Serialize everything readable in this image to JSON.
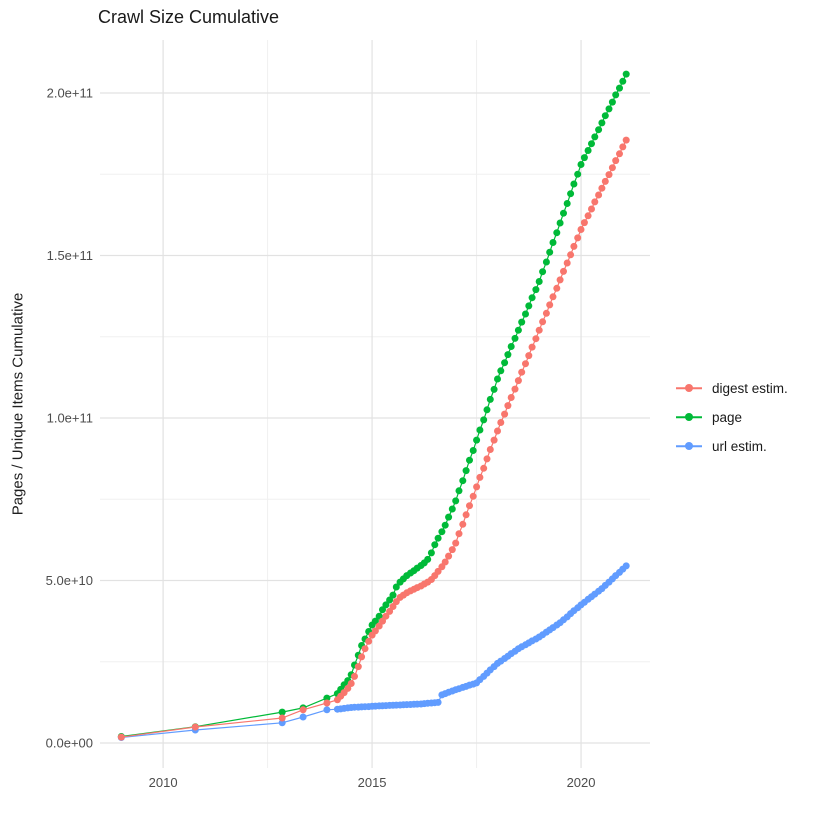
{
  "title": "Crawl Size Cumulative",
  "axes": {
    "y_title": "Pages / Unique Items Cumulative",
    "x_tick_labels": [
      "2010",
      "2015",
      "2020"
    ],
    "y_tick_labels": [
      "0.0e+00",
      "5.0e+10",
      "1.0e+11",
      "1.5e+11",
      "2.0e+11"
    ]
  },
  "legend": {
    "items": [
      {
        "label": "digest estim.",
        "color": "#F8766D"
      },
      {
        "label": "page",
        "color": "#00BA38"
      },
      {
        "label": "url estim.",
        "color": "#619CFF"
      }
    ]
  },
  "colors": {
    "grid_major": "#e2e2e2",
    "grid_minor": "#f0f0f0",
    "tick_text": "#4d4d4d",
    "background": "#ffffff"
  },
  "chart_data": {
    "type": "line",
    "title": "Crawl Size Cumulative",
    "xlabel": "",
    "ylabel": "Pages / Unique Items Cumulative",
    "value_unit": 1000000000,
    "xlim": [
      2008.49,
      2021.65
    ],
    "ylim": [
      -7.7,
      216.3
    ],
    "grid": true,
    "legend_position": "right",
    "x_ticks": [
      {
        "label": "2010",
        "value": 2010
      },
      {
        "label": "2015",
        "value": 2015
      },
      {
        "label": "2020",
        "value": 2020
      }
    ],
    "y_ticks": [
      {
        "label": "0.0e+00",
        "value": 0
      },
      {
        "label": "5.0e+10",
        "value": 50
      },
      {
        "label": "1.0e+11",
        "value": 100
      },
      {
        "label": "1.5e+11",
        "value": 150
      },
      {
        "label": "2.0e+11",
        "value": 200
      }
    ],
    "x_minor": [
      2012.5,
      2017.5
    ],
    "y_minor": [
      25,
      75,
      125,
      175
    ],
    "draw_order": [
      1,
      2,
      0
    ],
    "series": [
      {
        "name": "digest estim.",
        "color": "#F8766D",
        "points": [
          [
            2009.0,
            1.8
          ],
          [
            2010.77,
            4.9
          ],
          [
            2012.85,
            7.7
          ],
          [
            2013.35,
            10.2
          ],
          [
            2013.92,
            12.3
          ],
          [
            2014.17,
            13.3
          ],
          [
            2014.25,
            14.4
          ],
          [
            2014.33,
            15.5
          ],
          [
            2014.42,
            16.8
          ],
          [
            2014.5,
            18.3
          ],
          [
            2014.58,
            20.5
          ],
          [
            2014.67,
            23.5
          ],
          [
            2014.75,
            26.5
          ],
          [
            2014.83,
            29.0
          ],
          [
            2014.92,
            31.3
          ],
          [
            2015.0,
            33.2
          ],
          [
            2015.08,
            34.5
          ],
          [
            2015.17,
            36.0
          ],
          [
            2015.25,
            37.5
          ],
          [
            2015.33,
            39.0
          ],
          [
            2015.42,
            40.5
          ],
          [
            2015.5,
            42.0
          ],
          [
            2015.58,
            43.5
          ],
          [
            2015.67,
            44.8
          ],
          [
            2015.75,
            45.5
          ],
          [
            2015.83,
            46.2
          ],
          [
            2015.92,
            46.8
          ],
          [
            2016.0,
            47.3
          ],
          [
            2016.08,
            47.8
          ],
          [
            2016.17,
            48.3
          ],
          [
            2016.25,
            48.9
          ],
          [
            2016.33,
            49.5
          ],
          [
            2016.42,
            50.3
          ],
          [
            2016.5,
            51.5
          ],
          [
            2016.58,
            52.8
          ],
          [
            2016.67,
            54.2
          ],
          [
            2016.75,
            55.7
          ],
          [
            2016.83,
            57.5
          ],
          [
            2016.92,
            59.5
          ],
          [
            2017.0,
            61.5
          ],
          [
            2017.08,
            64.4
          ],
          [
            2017.17,
            67.3
          ],
          [
            2017.25,
            70.2
          ],
          [
            2017.33,
            73.0
          ],
          [
            2017.42,
            75.9
          ],
          [
            2017.5,
            78.8
          ],
          [
            2017.58,
            81.7
          ],
          [
            2017.67,
            84.5
          ],
          [
            2017.75,
            87.4
          ],
          [
            2017.83,
            90.3
          ],
          [
            2017.92,
            93.2
          ],
          [
            2018.0,
            96.0
          ],
          [
            2018.08,
            98.6
          ],
          [
            2018.17,
            101.2
          ],
          [
            2018.25,
            103.8
          ],
          [
            2018.33,
            106.3
          ],
          [
            2018.42,
            108.9
          ],
          [
            2018.5,
            111.5
          ],
          [
            2018.58,
            114.1
          ],
          [
            2018.67,
            116.7
          ],
          [
            2018.75,
            119.2
          ],
          [
            2018.83,
            121.8
          ],
          [
            2018.92,
            124.4
          ],
          [
            2019.0,
            127.0
          ],
          [
            2019.08,
            129.6
          ],
          [
            2019.17,
            132.2
          ],
          [
            2019.25,
            134.8
          ],
          [
            2019.33,
            137.3
          ],
          [
            2019.42,
            139.9
          ],
          [
            2019.5,
            142.5
          ],
          [
            2019.58,
            145.1
          ],
          [
            2019.67,
            147.7
          ],
          [
            2019.75,
            150.2
          ],
          [
            2019.83,
            152.8
          ],
          [
            2019.92,
            155.4
          ],
          [
            2020.0,
            158.0
          ],
          [
            2020.08,
            160.1
          ],
          [
            2020.17,
            162.2
          ],
          [
            2020.25,
            164.3
          ],
          [
            2020.33,
            166.5
          ],
          [
            2020.42,
            168.6
          ],
          [
            2020.5,
            170.7
          ],
          [
            2020.58,
            172.8
          ],
          [
            2020.67,
            174.9
          ],
          [
            2020.75,
            177.0
          ],
          [
            2020.83,
            179.2
          ],
          [
            2020.92,
            181.3
          ],
          [
            2021.0,
            183.4
          ],
          [
            2021.08,
            185.5
          ]
        ]
      },
      {
        "name": "page",
        "color": "#00BA38",
        "points": [
          [
            2009.0,
            2.0
          ],
          [
            2010.77,
            5.0
          ],
          [
            2012.85,
            9.5
          ],
          [
            2013.35,
            10.8
          ],
          [
            2013.92,
            13.8
          ],
          [
            2014.17,
            15.2
          ],
          [
            2014.25,
            16.5
          ],
          [
            2014.33,
            17.9
          ],
          [
            2014.42,
            19.2
          ],
          [
            2014.5,
            21.0
          ],
          [
            2014.58,
            24.0
          ],
          [
            2014.67,
            27.0
          ],
          [
            2014.75,
            30.0
          ],
          [
            2014.83,
            32.0
          ],
          [
            2014.92,
            34.3
          ],
          [
            2015.0,
            36.3
          ],
          [
            2015.08,
            37.5
          ],
          [
            2015.17,
            39.0
          ],
          [
            2015.25,
            41.0
          ],
          [
            2015.33,
            42.5
          ],
          [
            2015.42,
            44.0
          ],
          [
            2015.5,
            45.5
          ],
          [
            2015.58,
            48.0
          ],
          [
            2015.67,
            49.5
          ],
          [
            2015.75,
            50.5
          ],
          [
            2015.83,
            51.5
          ],
          [
            2015.92,
            52.3
          ],
          [
            2016.0,
            53.0
          ],
          [
            2016.08,
            53.8
          ],
          [
            2016.17,
            54.6
          ],
          [
            2016.25,
            55.4
          ],
          [
            2016.33,
            56.5
          ],
          [
            2016.42,
            58.5
          ],
          [
            2016.5,
            61.0
          ],
          [
            2016.58,
            63.0
          ],
          [
            2016.67,
            65.0
          ],
          [
            2016.75,
            67.0
          ],
          [
            2016.83,
            69.5
          ],
          [
            2016.92,
            72.0
          ],
          [
            2017.0,
            74.5
          ],
          [
            2017.08,
            77.6
          ],
          [
            2017.17,
            80.7
          ],
          [
            2017.25,
            83.8
          ],
          [
            2017.33,
            87.0
          ],
          [
            2017.42,
            90.0
          ],
          [
            2017.5,
            93.2
          ],
          [
            2017.58,
            96.3
          ],
          [
            2017.67,
            99.4
          ],
          [
            2017.75,
            102.5
          ],
          [
            2017.83,
            105.7
          ],
          [
            2017.92,
            108.8
          ],
          [
            2018.0,
            112.0
          ],
          [
            2018.08,
            114.5
          ],
          [
            2018.17,
            117.0
          ],
          [
            2018.25,
            119.5
          ],
          [
            2018.33,
            122.0
          ],
          [
            2018.42,
            124.5
          ],
          [
            2018.5,
            127.0
          ],
          [
            2018.58,
            129.5
          ],
          [
            2018.67,
            132.0
          ],
          [
            2018.75,
            134.5
          ],
          [
            2018.83,
            137.0
          ],
          [
            2018.92,
            139.5
          ],
          [
            2019.0,
            142.0
          ],
          [
            2019.08,
            145.0
          ],
          [
            2019.17,
            148.0
          ],
          [
            2019.25,
            151.0
          ],
          [
            2019.33,
            154.0
          ],
          [
            2019.42,
            157.0
          ],
          [
            2019.5,
            160.0
          ],
          [
            2019.58,
            163.0
          ],
          [
            2019.67,
            166.0
          ],
          [
            2019.75,
            169.0
          ],
          [
            2019.83,
            172.0
          ],
          [
            2019.92,
            175.0
          ],
          [
            2020.0,
            178.0
          ],
          [
            2020.08,
            180.1
          ],
          [
            2020.17,
            182.3
          ],
          [
            2020.25,
            184.4
          ],
          [
            2020.33,
            186.5
          ],
          [
            2020.42,
            188.7
          ],
          [
            2020.5,
            190.8
          ],
          [
            2020.58,
            193.0
          ],
          [
            2020.67,
            195.1
          ],
          [
            2020.75,
            197.2
          ],
          [
            2020.83,
            199.4
          ],
          [
            2020.92,
            201.5
          ],
          [
            2021.0,
            203.6
          ],
          [
            2021.08,
            205.8
          ]
        ]
      },
      {
        "name": "url estim.",
        "color": "#619CFF",
        "points": [
          [
            2009.0,
            1.7
          ],
          [
            2010.77,
            4.0
          ],
          [
            2012.85,
            6.2
          ],
          [
            2013.35,
            8.0
          ],
          [
            2013.92,
            10.2
          ],
          [
            2014.17,
            10.4
          ],
          [
            2014.25,
            10.5
          ],
          [
            2014.33,
            10.65
          ],
          [
            2014.42,
            10.8
          ],
          [
            2014.5,
            10.9
          ],
          [
            2014.58,
            11.0
          ],
          [
            2014.67,
            11.05
          ],
          [
            2014.75,
            11.1
          ],
          [
            2014.83,
            11.15
          ],
          [
            2014.92,
            11.2
          ],
          [
            2015.0,
            11.3
          ],
          [
            2015.08,
            11.35
          ],
          [
            2015.17,
            11.4
          ],
          [
            2015.25,
            11.45
          ],
          [
            2015.33,
            11.5
          ],
          [
            2015.42,
            11.55
          ],
          [
            2015.5,
            11.6
          ],
          [
            2015.58,
            11.65
          ],
          [
            2015.67,
            11.7
          ],
          [
            2015.75,
            11.75
          ],
          [
            2015.83,
            11.8
          ],
          [
            2015.92,
            11.85
          ],
          [
            2016.0,
            11.9
          ],
          [
            2016.08,
            11.95
          ],
          [
            2016.17,
            12.0
          ],
          [
            2016.25,
            12.1
          ],
          [
            2016.33,
            12.2
          ],
          [
            2016.42,
            12.3
          ],
          [
            2016.5,
            12.4
          ],
          [
            2016.58,
            12.5
          ],
          [
            2016.67,
            14.8
          ],
          [
            2016.75,
            15.2
          ],
          [
            2016.83,
            15.6
          ],
          [
            2016.92,
            16.0
          ],
          [
            2017.0,
            16.4
          ],
          [
            2017.08,
            16.7
          ],
          [
            2017.17,
            17.1
          ],
          [
            2017.25,
            17.4
          ],
          [
            2017.33,
            17.8
          ],
          [
            2017.42,
            18.1
          ],
          [
            2017.5,
            18.5
          ],
          [
            2017.58,
            19.5
          ],
          [
            2017.67,
            20.5
          ],
          [
            2017.75,
            21.5
          ],
          [
            2017.83,
            22.5
          ],
          [
            2017.92,
            23.5
          ],
          [
            2018.0,
            24.5
          ],
          [
            2018.08,
            25.2
          ],
          [
            2018.17,
            26.0
          ],
          [
            2018.25,
            26.7
          ],
          [
            2018.33,
            27.5
          ],
          [
            2018.42,
            28.2
          ],
          [
            2018.5,
            29.0
          ],
          [
            2018.58,
            29.6
          ],
          [
            2018.67,
            30.2
          ],
          [
            2018.75,
            30.8
          ],
          [
            2018.83,
            31.4
          ],
          [
            2018.92,
            32.0
          ],
          [
            2019.0,
            32.6
          ],
          [
            2019.08,
            33.3
          ],
          [
            2019.17,
            34.1
          ],
          [
            2019.25,
            34.8
          ],
          [
            2019.33,
            35.5
          ],
          [
            2019.42,
            36.3
          ],
          [
            2019.5,
            37.0
          ],
          [
            2019.58,
            37.9
          ],
          [
            2019.67,
            38.8
          ],
          [
            2019.75,
            39.8
          ],
          [
            2019.83,
            40.7
          ],
          [
            2019.92,
            41.6
          ],
          [
            2020.0,
            42.5
          ],
          [
            2020.08,
            43.3
          ],
          [
            2020.17,
            44.2
          ],
          [
            2020.25,
            45.0
          ],
          [
            2020.33,
            45.8
          ],
          [
            2020.42,
            46.7
          ],
          [
            2020.5,
            47.5
          ],
          [
            2020.58,
            48.5
          ],
          [
            2020.67,
            49.5
          ],
          [
            2020.75,
            50.5
          ],
          [
            2020.83,
            51.5
          ],
          [
            2020.92,
            52.5
          ],
          [
            2021.0,
            53.5
          ],
          [
            2021.08,
            54.5
          ]
        ]
      }
    ]
  }
}
